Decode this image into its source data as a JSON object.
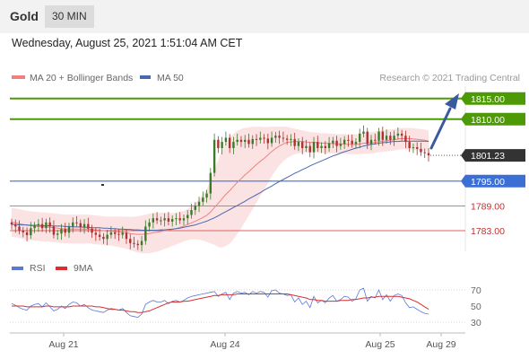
{
  "header": {
    "symbol": "Gold",
    "timeframe": "30 MIN",
    "datetime": "Wednesday, August 25, 2021 1:51:04 AM CET"
  },
  "legend": {
    "ma20": "MA 20 + Bollinger Bands",
    "ma50": "MA 50",
    "credit": "Research © 2021 Trading Central",
    "rsi": "RSI",
    "rsi_ma": "9MA"
  },
  "colors": {
    "green": "#4e9a06",
    "blue": "#3b6fd6",
    "red": "#e06060",
    "dark": "#333333",
    "candle_up": "#3a7a2a",
    "candle_down": "#b03030",
    "band": "#fbdede",
    "ma20": "#f08080",
    "ma50": "#4a68b0",
    "rsi": "#5a78d8",
    "rsi_ma": "#d83030",
    "arrow": "#3a5aa0"
  },
  "chart_data": [
    {
      "type": "candlestick",
      "ylim": [
        1778,
        1818
      ],
      "x_ticks": [
        "Aug 21",
        "Aug 24",
        "Aug 25",
        "Aug 29"
      ],
      "levels": [
        {
          "label": "1815.00",
          "value": 1815.0,
          "kind": "resistance"
        },
        {
          "label": "1810.00",
          "value": 1810.0,
          "kind": "resistance"
        },
        {
          "label": "1801.23",
          "value": 1801.23,
          "kind": "last"
        },
        {
          "label": "1795.00",
          "value": 1795.0,
          "kind": "pivot"
        },
        {
          "label": "1789.00",
          "value": 1789.0,
          "kind": "support"
        },
        {
          "label": "1783.00",
          "value": 1783.0,
          "kind": "support"
        }
      ],
      "closes": [
        1784.5,
        1784.0,
        1783.0,
        1782.6,
        1781.9,
        1783.6,
        1784.2,
        1784.6,
        1783.6,
        1785.0,
        1784.0,
        1782.0,
        1782.3,
        1783.4,
        1782.5,
        1784.0,
        1785.0,
        1784.8,
        1783.8,
        1784.6,
        1783.5,
        1782.5,
        1782.0,
        1781.5,
        1781.0,
        1782.0,
        1782.6,
        1782.2,
        1782.0,
        1782.5,
        1781.0,
        1780.0,
        1779.8,
        1779.5,
        1780.5,
        1784.0,
        1785.0,
        1786.0,
        1785.5,
        1785.5,
        1786.0,
        1785.2,
        1785.8,
        1786.0,
        1785.5,
        1786.0,
        1786.8,
        1788.0,
        1789.0,
        1790.0,
        1791.0,
        1792.0,
        1797.0,
        1805.0,
        1803.0,
        1804.5,
        1805.5,
        1803.0,
        1804.5,
        1805.0,
        1804.5,
        1805.0,
        1804.0,
        1805.2,
        1805.0,
        1805.5,
        1805.3,
        1804.2,
        1805.5,
        1806.0,
        1805.5,
        1805.3,
        1805.0,
        1805.2,
        1803.5,
        1804.5,
        1803.0,
        1803.5,
        1802.0,
        1804.5,
        1803.0,
        1803.5,
        1803.0,
        1804.2,
        1804.8,
        1803.5,
        1804.0,
        1805.0,
        1804.8,
        1804.0,
        1804.5,
        1806.5,
        1807.0,
        1804.0,
        1805.0,
        1804.8,
        1807.0,
        1805.0,
        1806.0,
        1805.0,
        1806.0,
        1806.5,
        1806.0,
        1804.5,
        1803.0,
        1803.2,
        1802.8,
        1802.0,
        1801.8,
        1801.23
      ],
      "ma20": [
        1785.0,
        1784.9,
        1784.7,
        1784.5,
        1784.3,
        1784.2,
        1784.1,
        1784.0,
        1783.9,
        1783.9,
        1783.8,
        1783.7,
        1783.6,
        1783.5,
        1783.4,
        1783.4,
        1783.4,
        1783.4,
        1783.4,
        1783.4,
        1783.4,
        1783.3,
        1783.2,
        1783.1,
        1783.0,
        1782.9,
        1782.9,
        1782.8,
        1782.7,
        1782.6,
        1782.5,
        1782.3,
        1782.2,
        1782.1,
        1782.1,
        1782.2,
        1782.3,
        1782.5,
        1782.6,
        1782.8,
        1783.0,
        1783.1,
        1783.3,
        1783.5,
        1783.8,
        1784.1,
        1784.5,
        1784.9,
        1785.3,
        1785.7,
        1786.2,
        1786.7,
        1787.5,
        1788.6,
        1789.6,
        1790.7,
        1791.8,
        1792.7,
        1793.7,
        1794.7,
        1795.6,
        1796.5,
        1797.3,
        1798.2,
        1799.0,
        1799.8,
        1800.5,
        1801.3,
        1802.2,
        1802.9,
        1803.5,
        1804.0,
        1804.4,
        1804.5,
        1804.6,
        1804.6,
        1804.6,
        1804.5,
        1804.4,
        1804.4,
        1804.3,
        1804.2,
        1804.2,
        1804.1,
        1804.1,
        1804.0,
        1804.0,
        1804.0,
        1803.9,
        1803.9,
        1803.9,
        1804.0,
        1804.2,
        1804.2,
        1804.3,
        1804.4,
        1804.6,
        1804.7,
        1804.8,
        1804.9,
        1805.0,
        1805.2,
        1805.3,
        1805.3,
        1805.3,
        1805.2,
        1805.1,
        1805.0,
        1804.9,
        1804.7
      ],
      "ma50": [
        1784.5,
        1784.5,
        1784.4,
        1784.4,
        1784.4,
        1784.3,
        1784.3,
        1784.3,
        1784.2,
        1784.2,
        1784.2,
        1784.1,
        1784.1,
        1784.1,
        1784.0,
        1784.0,
        1783.9,
        1783.9,
        1783.9,
        1783.8,
        1783.8,
        1783.7,
        1783.7,
        1783.7,
        1783.6,
        1783.6,
        1783.5,
        1783.5,
        1783.4,
        1783.4,
        1783.3,
        1783.3,
        1783.2,
        1783.2,
        1783.1,
        1783.1,
        1783.1,
        1783.1,
        1783.1,
        1783.2,
        1783.2,
        1783.3,
        1783.4,
        1783.5,
        1783.6,
        1783.8,
        1784.0,
        1784.2,
        1784.4,
        1784.7,
        1785.0,
        1785.3,
        1785.7,
        1786.1,
        1786.6,
        1787.1,
        1787.6,
        1788.1,
        1788.6,
        1789.1,
        1789.6,
        1790.1,
        1790.7,
        1791.2,
        1791.7,
        1792.2,
        1792.8,
        1793.3,
        1793.8,
        1794.4,
        1794.9,
        1795.4,
        1795.9,
        1796.4,
        1796.9,
        1797.3,
        1797.8,
        1798.2,
        1798.7,
        1799.1,
        1799.5,
        1799.9,
        1800.3,
        1800.7,
        1801.1,
        1801.4,
        1801.8,
        1802.1,
        1802.4,
        1802.7,
        1803.0,
        1803.2,
        1803.5,
        1803.7,
        1803.9,
        1804.0,
        1804.2,
        1804.3,
        1804.4,
        1804.5,
        1804.6,
        1804.6,
        1804.7,
        1804.7,
        1804.7,
        1804.7,
        1804.7,
        1804.7,
        1804.7,
        1804.6
      ],
      "bb_width": [
        3.5,
        3.5,
        3.5,
        3.5,
        3.5,
        3.5,
        3.5,
        3.5,
        3.5,
        3.5,
        3.5,
        3.5,
        3.5,
        3.5,
        3.5,
        3.5,
        3.5,
        3.5,
        3.5,
        3.5,
        3.5,
        3.5,
        3.5,
        3.5,
        3.5,
        3.5,
        3.5,
        3.6,
        3.7,
        3.8,
        3.9,
        4.0,
        4.2,
        4.4,
        4.6,
        4.7,
        4.8,
        4.8,
        4.7,
        4.6,
        4.4,
        4.2,
        4.0,
        3.9,
        3.8,
        3.7,
        3.8,
        4.0,
        4.4,
        4.9,
        5.6,
        6.4,
        7.6,
        9.0,
        10.6,
        11.8,
        12.5,
        12.8,
        12.8,
        12.5,
        12.0,
        11.4,
        10.7,
        10.0,
        9.2,
        8.4,
        7.6,
        6.8,
        6.0,
        5.3,
        4.7,
        4.2,
        3.8,
        3.4,
        3.1,
        2.9,
        2.7,
        2.6,
        2.5,
        2.4,
        2.4,
        2.4,
        2.4,
        2.4,
        2.4,
        2.4,
        2.4,
        2.4,
        2.4,
        2.4,
        2.4,
        2.5,
        2.6,
        2.6,
        2.6,
        2.6,
        2.6,
        2.6,
        2.6,
        2.6,
        2.6,
        2.6,
        2.6,
        2.6,
        2.6,
        2.6,
        2.6,
        2.6,
        2.6,
        2.6
      ]
    },
    {
      "type": "line",
      "title": "RSI",
      "ylim": [
        20,
        80
      ],
      "y_ticks": [
        30,
        50,
        70
      ],
      "reference_levels": [
        30,
        70
      ],
      "rsi": [
        53,
        51,
        48,
        46,
        45,
        50,
        52,
        53,
        49,
        54,
        49,
        44,
        46,
        50,
        47,
        52,
        55,
        54,
        50,
        52,
        48,
        45,
        44,
        43,
        42,
        45,
        47,
        46,
        45,
        47,
        42,
        38,
        37,
        36,
        40,
        52,
        55,
        57,
        55,
        55,
        57,
        53,
        56,
        57,
        55,
        57,
        60,
        62,
        63,
        64,
        65,
        66,
        67,
        68,
        62,
        65,
        67,
        58,
        66,
        68,
        66,
        67,
        64,
        68,
        66,
        68,
        67,
        61,
        69,
        70,
        66,
        65,
        63,
        64,
        55,
        60,
        52,
        56,
        48,
        62,
        54,
        57,
        54,
        60,
        63,
        56,
        58,
        62,
        61,
        56,
        59,
        70,
        72,
        56,
        62,
        60,
        70,
        58,
        64,
        56,
        63,
        65,
        63,
        54,
        48,
        49,
        46,
        43,
        41,
        40
      ],
      "rsi_ma": [
        50,
        50,
        50,
        50,
        49,
        49,
        49,
        49,
        49,
        50,
        50,
        49,
        49,
        49,
        49,
        49,
        50,
        50,
        50,
        50,
        50,
        50,
        49,
        49,
        48,
        47,
        46,
        46,
        45,
        45,
        44,
        43,
        43,
        42,
        42,
        43,
        44,
        46,
        48,
        50,
        52,
        54,
        55,
        55,
        55,
        56,
        56,
        57,
        58,
        59,
        60,
        61,
        62,
        63,
        63,
        64,
        64,
        64,
        64,
        65,
        65,
        65,
        65,
        65,
        65,
        65,
        65,
        65,
        65,
        65,
        65,
        65,
        65,
        64,
        63,
        62,
        61,
        60,
        58,
        58,
        57,
        57,
        56,
        56,
        56,
        56,
        57,
        57,
        57,
        58,
        58,
        59,
        60,
        60,
        61,
        61,
        62,
        62,
        62,
        62,
        62,
        62,
        61,
        60,
        59,
        57,
        55,
        52,
        49,
        46
      ]
    }
  ]
}
